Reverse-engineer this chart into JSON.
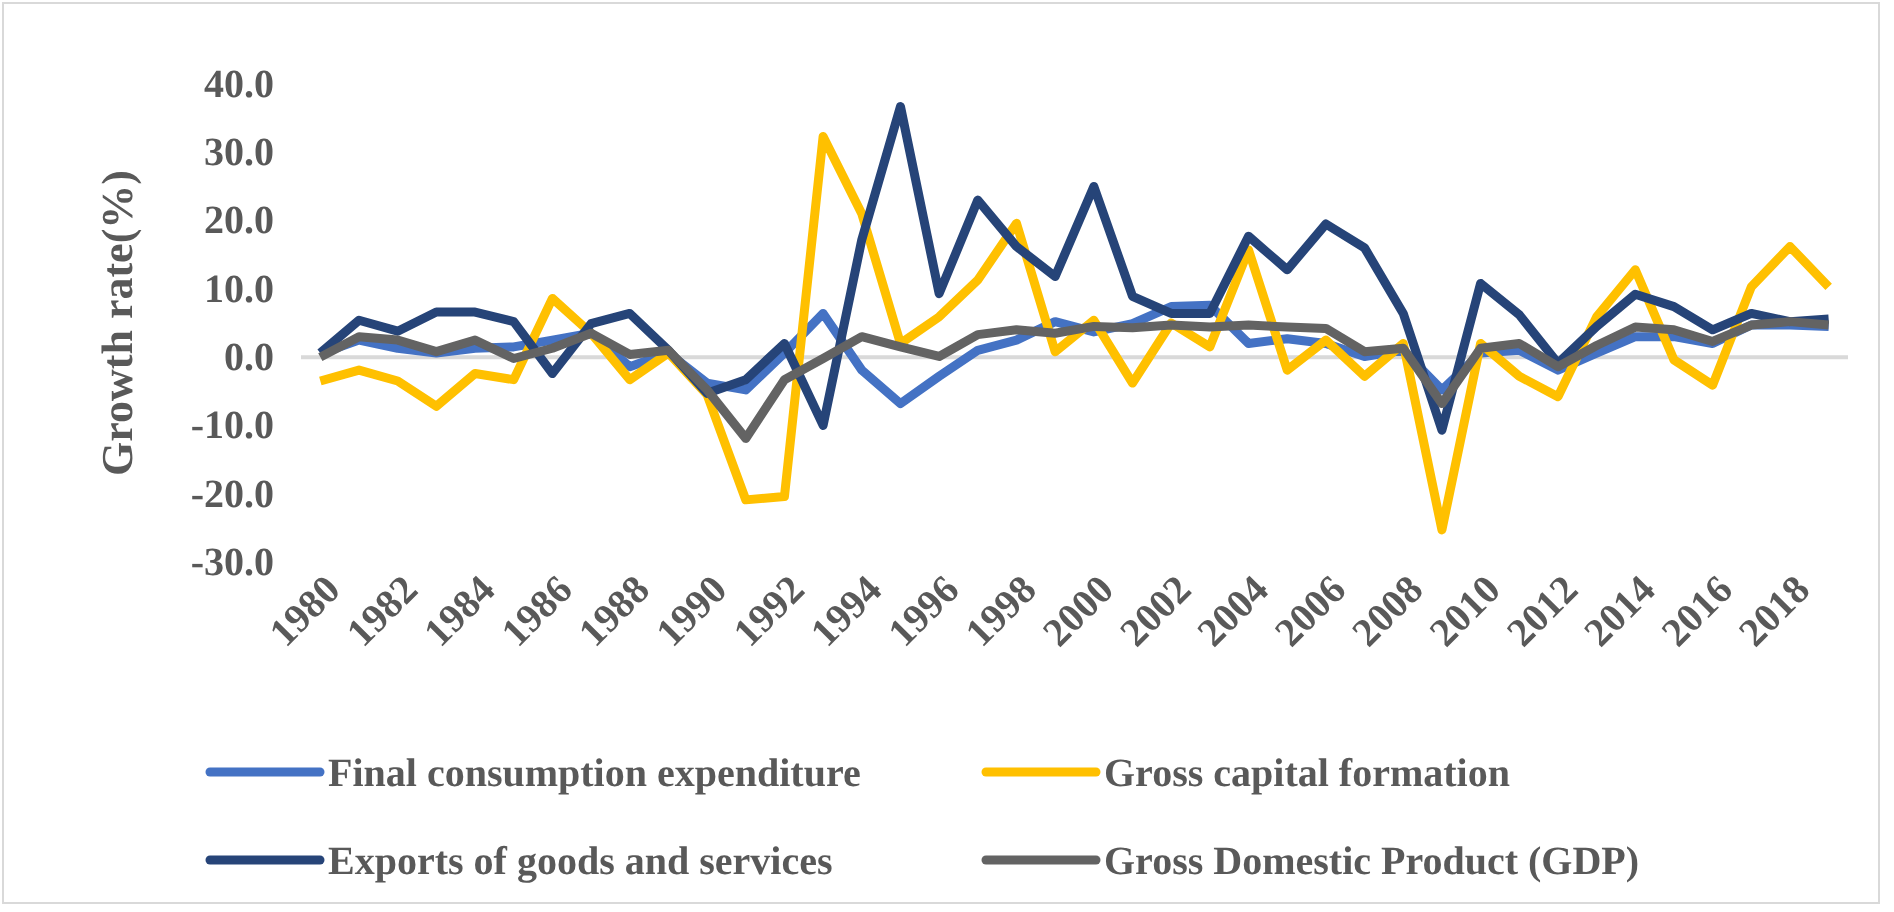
{
  "chart_data": {
    "type": "line",
    "ylabel": "Growth rate(%)",
    "categories": [
      "1980",
      null,
      "1982",
      null,
      "1984",
      null,
      "1986",
      null,
      "1988",
      null,
      "1990",
      null,
      "1992",
      null,
      "1994",
      null,
      "1996",
      null,
      "1998",
      null,
      "2000",
      null,
      "2002",
      null,
      "2004",
      null,
      "2006",
      null,
      "2008",
      null,
      "2010",
      null,
      "2012",
      null,
      "2014",
      null,
      "2016",
      null,
      "2018",
      null
    ],
    "series": [
      {
        "name": "Final consumption expenditure",
        "color": "#4472c4",
        "values": [
          0.5,
          2.5,
          1.3,
          0.6,
          1.3,
          1.5,
          2.5,
          3.5,
          -1.4,
          0.6,
          -3.8,
          -4.8,
          0.6,
          6.4,
          -1.9,
          -6.8,
          -2.8,
          1.0,
          2.5,
          5.2,
          3.7,
          4.9,
          7.4,
          7.6,
          2.0,
          2.7,
          2.0,
          0.1,
          1.0,
          -4.8,
          0.6,
          1.0,
          -1.9,
          0.6,
          3.0,
          3.0,
          2.0,
          4.7,
          4.7,
          4.5
        ]
      },
      {
        "name": "Gross capital formation",
        "color": "#ffc000",
        "values": [
          -3.5,
          -1.9,
          -3.5,
          -7.2,
          -2.4,
          -3.3,
          8.6,
          3.5,
          -3.3,
          0.6,
          -5.5,
          -20.9,
          -20.4,
          32.3,
          21.0,
          2.0,
          5.9,
          11.3,
          19.6,
          0.8,
          5.4,
          -3.8,
          5.0,
          1.5,
          15.7,
          -1.9,
          2.5,
          -2.8,
          2.0,
          -25.3,
          2.0,
          -2.8,
          -5.8,
          5.9,
          12.8,
          -0.4,
          -4.1,
          10.3,
          16.2,
          10.3
        ]
      },
      {
        "name": "Exports of goods and services",
        "color": "#264478",
        "values": [
          0.6,
          5.4,
          3.8,
          6.6,
          6.6,
          5.2,
          -2.4,
          4.9,
          6.4,
          1.0,
          -5.3,
          -3.3,
          2.0,
          -10.0,
          17.2,
          36.7,
          9.3,
          23.0,
          16.2,
          11.8,
          25.0,
          8.9,
          6.4,
          6.4,
          17.7,
          12.8,
          19.5,
          16.0,
          6.4,
          -10.7,
          10.8,
          6.2,
          -0.9,
          4.5,
          9.2,
          7.4,
          4.0,
          6.4,
          5.2,
          5.6
        ]
      },
      {
        "name": "Gross Domestic Product (GDP)",
        "color": "#636363",
        "values": [
          0.0,
          3.0,
          2.5,
          0.8,
          2.5,
          -0.2,
          1.3,
          3.5,
          0.4,
          1.0,
          -4.8,
          -11.9,
          -3.3,
          -0.2,
          3.0,
          1.5,
          0.1,
          3.3,
          4.0,
          3.5,
          4.5,
          4.3,
          4.7,
          4.4,
          4.7,
          4.4,
          4.2,
          0.8,
          1.3,
          -6.8,
          1.3,
          2.0,
          -1.4,
          1.7,
          4.4,
          4.0,
          2.3,
          4.7,
          5.2,
          4.7
        ]
      }
    ],
    "ylim": [
      -30,
      40
    ],
    "yticks": [
      {
        "value": -30,
        "label": "-30.0"
      },
      {
        "value": -20,
        "label": "-20.0"
      },
      {
        "value": -10,
        "label": "-10.0"
      },
      {
        "value": 0,
        "label": "0.0"
      },
      {
        "value": 10,
        "label": "10.0"
      },
      {
        "value": 20,
        "label": "20.0"
      },
      {
        "value": 30,
        "label": "30.0"
      },
      {
        "value": 40,
        "label": "40.0"
      }
    ],
    "legend": "bottom",
    "marker": "none",
    "line_style": "solid"
  }
}
